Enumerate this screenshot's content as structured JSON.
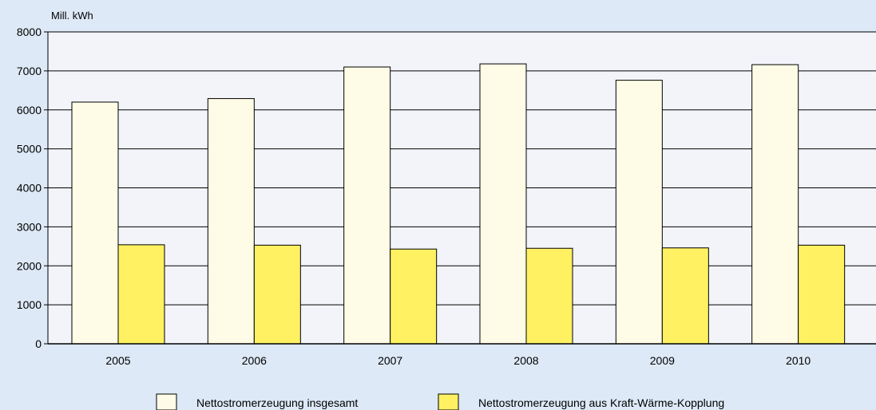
{
  "chart_data": {
    "type": "bar",
    "unit_label": "Mill. kWh",
    "categories": [
      "2005",
      "2006",
      "2007",
      "2008",
      "2009",
      "2010"
    ],
    "y_ticks": [
      "0",
      "1000",
      "2000",
      "3000",
      "4000",
      "5000",
      "6000",
      "7000",
      "8000"
    ],
    "ylim": [
      0,
      8000
    ],
    "grid": true,
    "legend_position": "bottom",
    "series": [
      {
        "name": "Nettostromerzeugung insgesamt",
        "color": "#fefce6",
        "values": [
          6200,
          6290,
          7100,
          7180,
          6760,
          7160
        ]
      },
      {
        "name": "Nettostromerzeugung aus Kraft-Wärme-Kopplung",
        "color": "#fff162",
        "values": [
          2540,
          2530,
          2430,
          2450,
          2460,
          2530
        ]
      }
    ],
    "colors": {
      "background": "#dde9f6",
      "plot_background": "#f2f4fa",
      "grid": "#000000"
    }
  }
}
